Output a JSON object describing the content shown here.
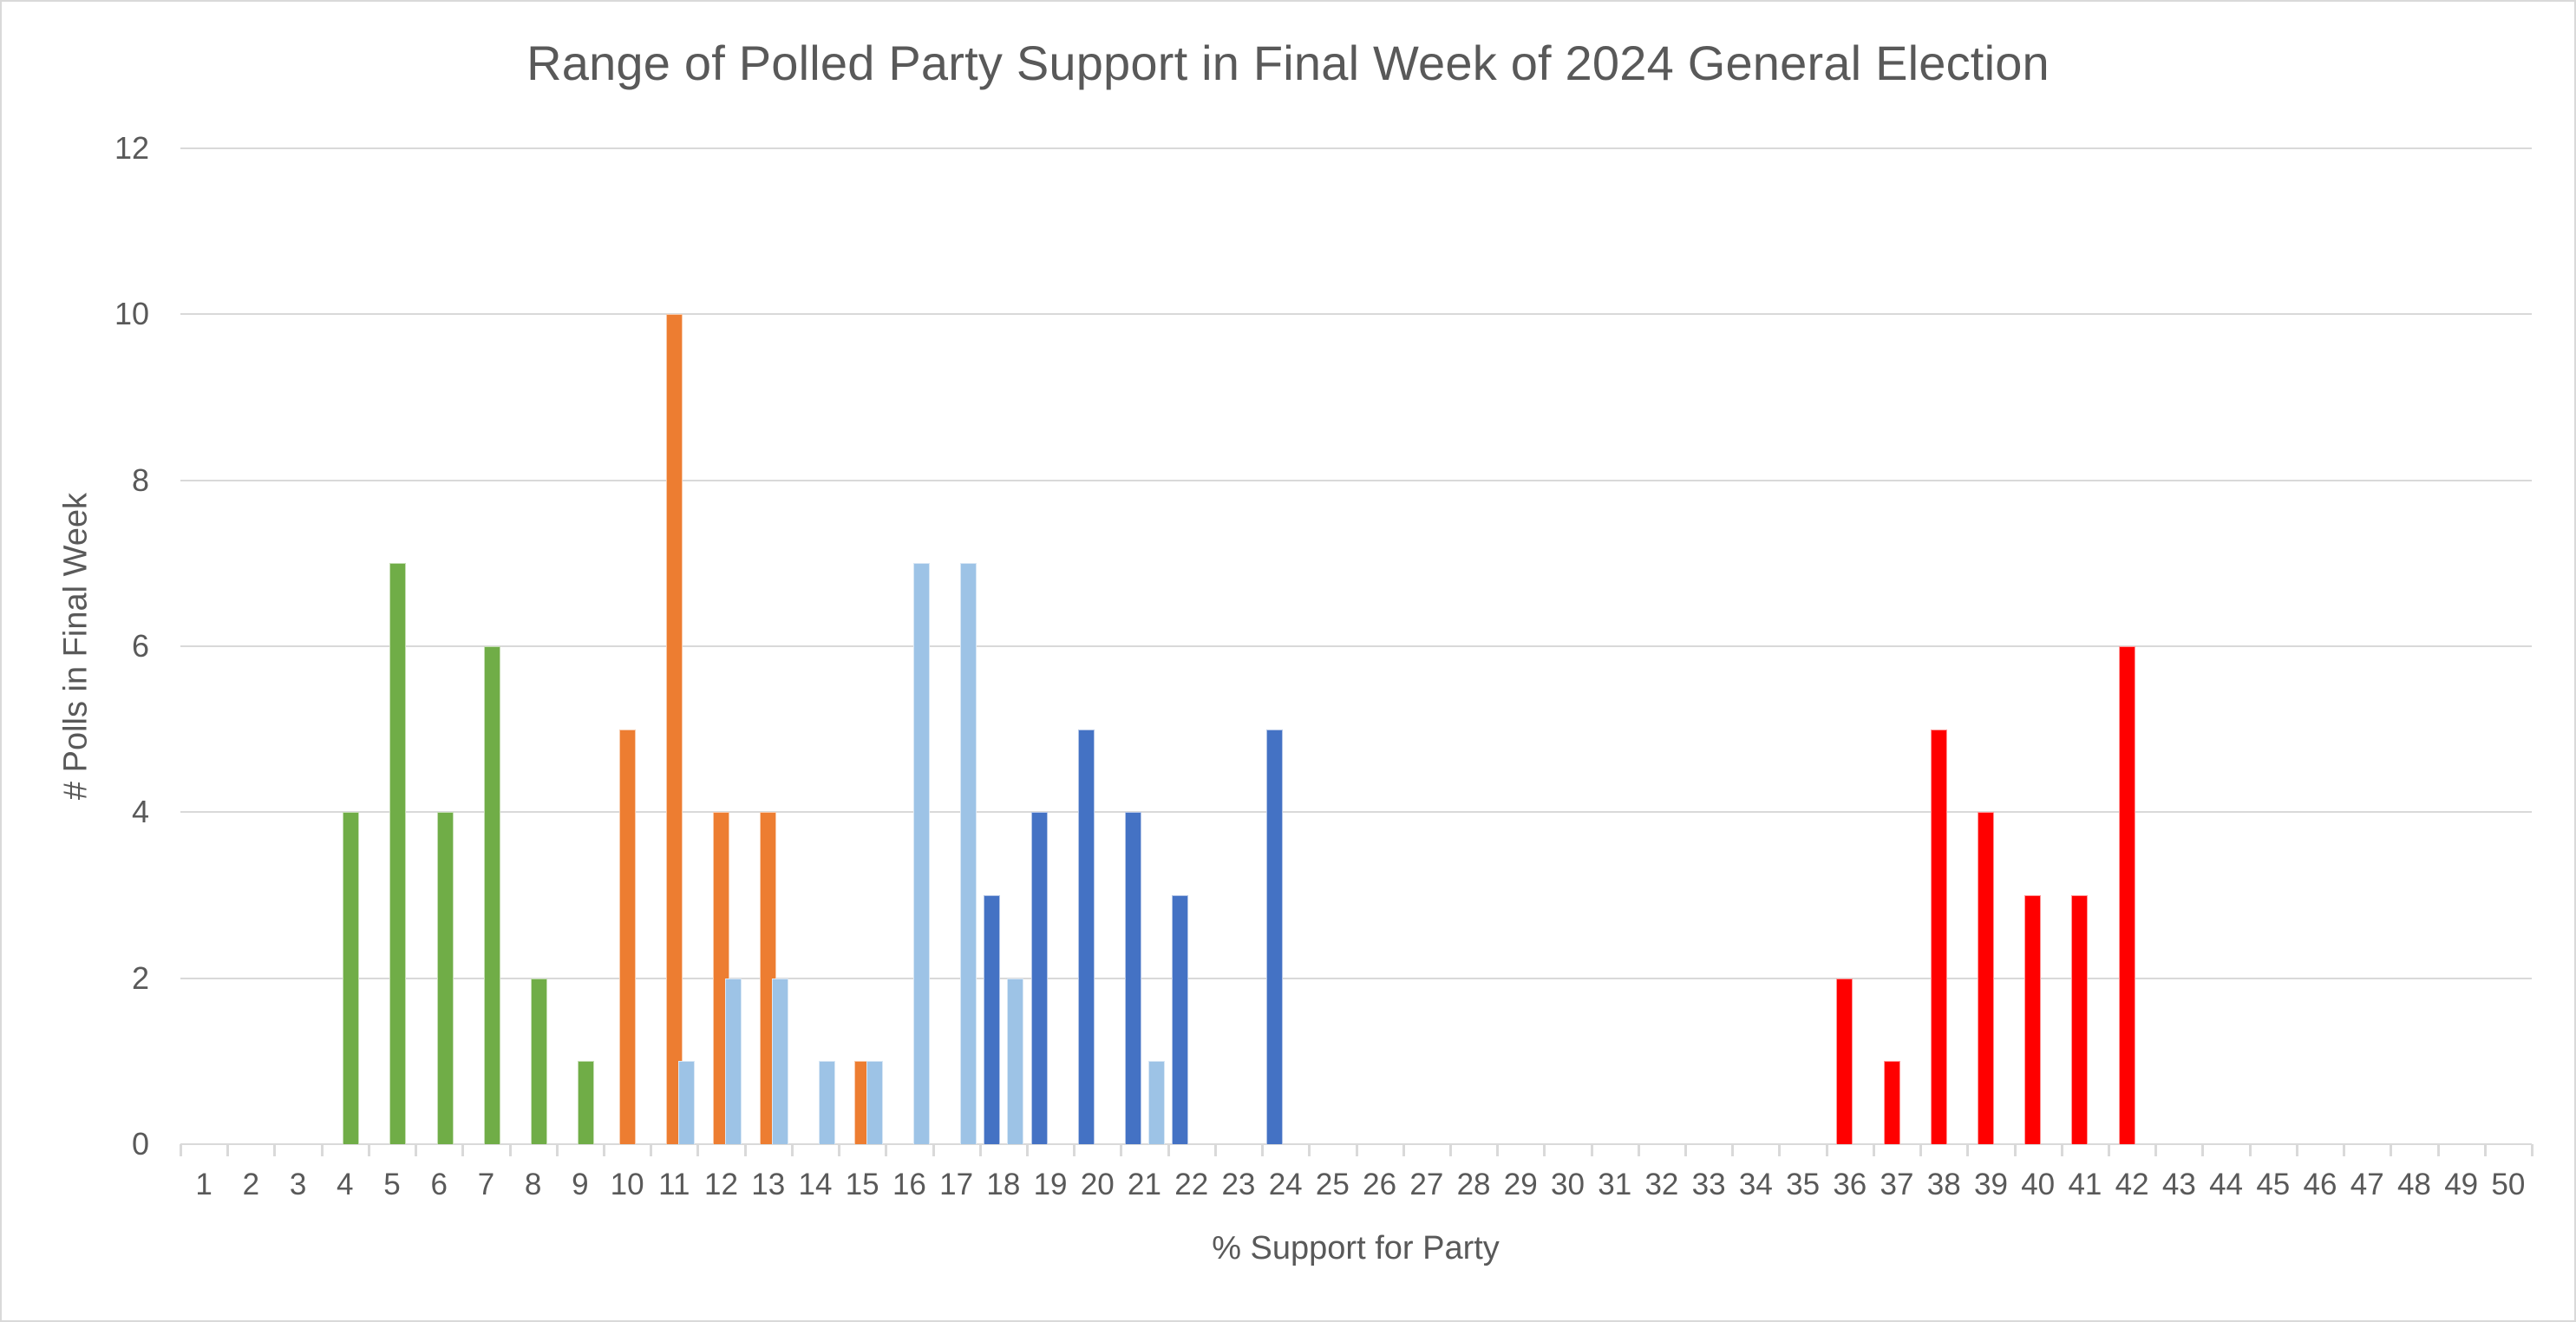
{
  "chart_data": {
    "type": "bar",
    "title": "Range of Polled Party Support in Final Week of 2024 General Election",
    "xlabel": "% Support for Party",
    "ylabel": "# Polls in Final Week",
    "ylim": [
      0,
      12
    ],
    "yticks": [
      0,
      2,
      4,
      6,
      8,
      10,
      12
    ],
    "grid": true,
    "legend": "none",
    "categories": [
      1,
      2,
      3,
      4,
      5,
      6,
      7,
      8,
      9,
      10,
      11,
      12,
      13,
      14,
      15,
      16,
      17,
      18,
      19,
      20,
      21,
      22,
      23,
      24,
      25,
      26,
      27,
      28,
      29,
      30,
      31,
      32,
      33,
      34,
      35,
      36,
      37,
      38,
      39,
      40,
      41,
      42,
      43,
      44,
      45,
      46,
      47,
      48,
      49,
      50
    ],
    "series": [
      {
        "name": "Green series",
        "color": "#70AD47",
        "offset": 7,
        "points": [
          {
            "x": 4,
            "y": 4
          },
          {
            "x": 5,
            "y": 7
          },
          {
            "x": 6,
            "y": 4
          },
          {
            "x": 7,
            "y": 6
          },
          {
            "x": 8,
            "y": 2
          },
          {
            "x": 9,
            "y": 1
          }
        ]
      },
      {
        "name": "Orange series",
        "color": "#ED7D31",
        "offset": 0,
        "points": [
          {
            "x": 10,
            "y": 5
          },
          {
            "x": 11,
            "y": 10
          },
          {
            "x": 12,
            "y": 4
          },
          {
            "x": 13,
            "y": 4
          },
          {
            "x": 15,
            "y": 1
          }
        ]
      },
      {
        "name": "Light blue series",
        "color": "#9DC3E6",
        "offset": 14,
        "points": [
          {
            "x": 11,
            "y": 1
          },
          {
            "x": 12,
            "y": 2
          },
          {
            "x": 13,
            "y": 2
          },
          {
            "x": 14,
            "y": 1
          },
          {
            "x": 15,
            "y": 1
          },
          {
            "x": 16,
            "y": 7
          },
          {
            "x": 17,
            "y": 7
          },
          {
            "x": 18,
            "y": 2
          },
          {
            "x": 21,
            "y": 1
          }
        ]
      },
      {
        "name": "Dark blue series",
        "color": "#4472C4",
        "offset": -13,
        "points": [
          {
            "x": 18,
            "y": 3
          },
          {
            "x": 19,
            "y": 4
          },
          {
            "x": 20,
            "y": 5
          },
          {
            "x": 21,
            "y": 4
          },
          {
            "x": 22,
            "y": 3
          },
          {
            "x": 24,
            "y": 5
          }
        ]
      },
      {
        "name": "Red series",
        "color": "#FF0000",
        "offset": -6,
        "points": [
          {
            "x": 36,
            "y": 2
          },
          {
            "x": 37,
            "y": 1
          },
          {
            "x": 38,
            "y": 5
          },
          {
            "x": 39,
            "y": 4
          },
          {
            "x": 40,
            "y": 3
          },
          {
            "x": 41,
            "y": 3
          },
          {
            "x": 42,
            "y": 6
          }
        ]
      }
    ]
  }
}
